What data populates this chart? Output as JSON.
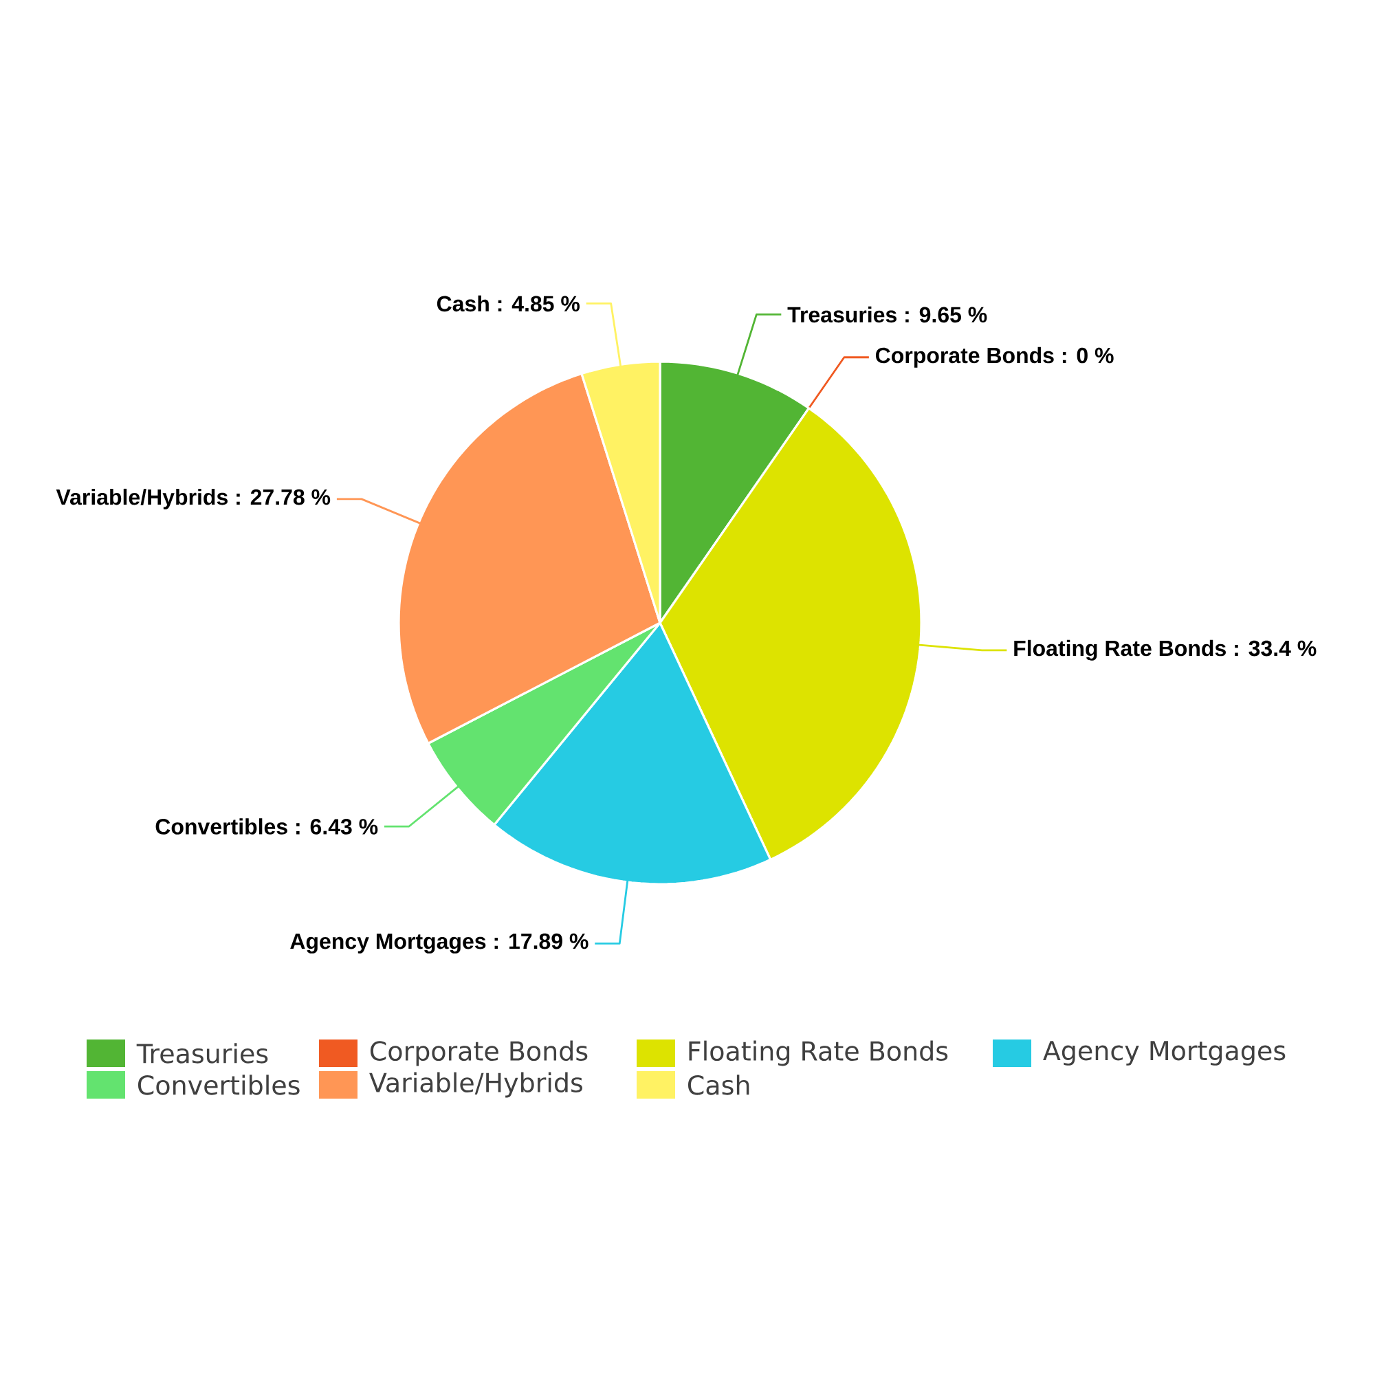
{
  "chart_data": {
    "type": "pie",
    "categories": [
      "Treasuries",
      "Corporate Bonds",
      "Floating Rate Bonds",
      "Agency Mortgages",
      "Convertibles",
      "Variable/Hybrids",
      "Cash"
    ],
    "values": [
      9.65,
      0,
      33.4,
      17.89,
      6.43,
      27.78,
      4.85
    ],
    "value_labels": [
      "Treasuries : 9.65 %",
      "Corporate Bonds : 0 %",
      "Floating Rate Bonds : 33.4 %",
      "Agency Mortgages : 17.89 %",
      "Convertibles : 6.43 %",
      "Variable/Hybrids : 27.78 %",
      "Cash : 4.85 %"
    ],
    "colors": [
      "#52b534",
      "#f05a22",
      "#dde300",
      "#26cbe3",
      "#63e36f",
      "#ff9655",
      "#fff263"
    ],
    "legend": "bottom"
  }
}
